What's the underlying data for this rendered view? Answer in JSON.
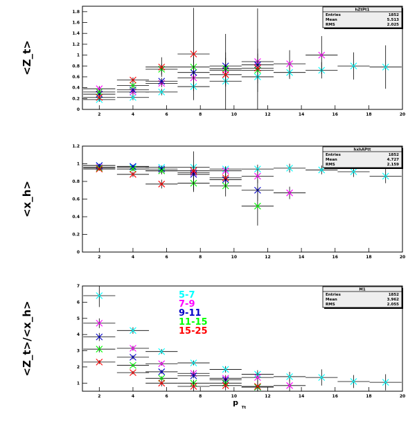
{
  "xaxis": {
    "label_main": "p",
    "label_sub": "Tt",
    "ticks": [
      2,
      4,
      6,
      8,
      10,
      12,
      14,
      16,
      18,
      20
    ],
    "range": [
      1,
      20
    ]
  },
  "legend": [
    {
      "label": "5-7",
      "color": "#00ffff"
    },
    {
      "label": "7-9",
      "color": "#ff00ff"
    },
    {
      "label": "9-11",
      "color": "#0000c8"
    },
    {
      "label": "11-15",
      "color": "#00ff00"
    },
    {
      "label": "15-25",
      "color": "#ff0000"
    }
  ],
  "series_colors": [
    "#00ffff",
    "#ff00ff",
    "#0000c8",
    "#00ff00",
    "#ff0000"
  ],
  "chart_data": [
    {
      "type": "scatter",
      "ylabel": "<Z_t>",
      "ylim": [
        0,
        1.9
      ],
      "yticks": [
        "0",
        "0.2",
        "0.4",
        "0.6",
        "0.8",
        "1",
        "1.2",
        "1.4",
        "1.6",
        "1.8"
      ],
      "stats": {
        "title": "hZtPt1",
        "rows": [
          [
            "Entries",
            "1852"
          ],
          [
            "Mean",
            "5.513"
          ],
          [
            "RMS",
            "2.025"
          ]
        ]
      },
      "series": [
        {
          "points": [
            [
              2,
              0.18,
              0.04
            ],
            [
              4,
              0.22,
              0.05
            ],
            [
              5.7,
              0.32,
              0.06
            ],
            [
              7.6,
              0.42,
              0.08
            ],
            [
              9.5,
              0.52,
              0.1
            ],
            [
              11.4,
              0.6,
              0.12
            ],
            [
              13.3,
              0.68,
              0.12
            ],
            [
              15.2,
              0.72,
              0.15
            ],
            [
              17.1,
              0.8,
              0.25
            ],
            [
              19,
              0.78,
              0.4
            ]
          ]
        },
        {
          "points": [
            [
              2,
              0.38,
              0.05
            ],
            [
              4,
              0.32,
              0.05
            ],
            [
              5.7,
              0.48,
              0.07
            ],
            [
              7.6,
              0.58,
              0.1
            ],
            [
              9.5,
              0.72,
              0.1
            ],
            [
              11.4,
              0.88,
              0.15
            ],
            [
              13.3,
              0.84,
              0.25
            ],
            [
              15.2,
              1.0,
              0.35
            ]
          ]
        },
        {
          "points": [
            [
              2,
              0.28,
              0.05
            ],
            [
              4,
              0.36,
              0.05
            ],
            [
              5.7,
              0.52,
              0.06
            ],
            [
              7.6,
              0.68,
              0.1
            ],
            [
              9.5,
              0.8,
              0.15
            ],
            [
              11.4,
              0.82,
              0.2
            ]
          ]
        },
        {
          "points": [
            [
              2,
              0.32,
              0.05
            ],
            [
              4,
              0.44,
              0.05
            ],
            [
              5.7,
              0.74,
              0.1
            ],
            [
              7.6,
              0.78,
              0.2
            ],
            [
              9.5,
              0.75,
              0.3
            ],
            [
              11.4,
              0.72,
              0.4
            ]
          ]
        },
        {
          "points": [
            [
              2,
              0.22,
              0.05
            ],
            [
              4,
              0.54,
              0.05
            ],
            [
              5.7,
              0.78,
              0.18
            ],
            [
              7.6,
              1.02,
              0.85
            ],
            [
              9.5,
              0.64,
              0.75
            ],
            [
              11.4,
              0.76,
              1.1
            ]
          ]
        }
      ]
    },
    {
      "type": "scatter",
      "ylabel": "<x_h>",
      "ylim": [
        0,
        1.2
      ],
      "yticks": [
        "0",
        "0.2",
        "0.4",
        "0.6",
        "0.8",
        "1",
        "1.2"
      ],
      "stats": {
        "title": "hxhAPtt",
        "rows": [
          [
            "Entries",
            "1852"
          ],
          [
            "Mean",
            "4.727"
          ],
          [
            "RMS",
            "2.159"
          ]
        ]
      },
      "series": [
        {
          "points": [
            [
              2,
              0.98,
              0.02
            ],
            [
              4,
              0.96,
              0.02
            ],
            [
              5.7,
              0.96,
              0.02
            ],
            [
              7.6,
              0.96,
              0.03
            ],
            [
              9.5,
              0.94,
              0.03
            ],
            [
              11.4,
              0.94,
              0.05
            ],
            [
              13.3,
              0.95,
              0.05
            ],
            [
              15.2,
              0.93,
              0.05
            ],
            [
              17.1,
              0.91,
              0.06
            ],
            [
              19,
              0.86,
              0.08
            ]
          ]
        },
        {
          "points": [
            [
              2,
              0.96,
              0.02
            ],
            [
              4,
              0.94,
              0.02
            ],
            [
              5.7,
              0.92,
              0.03
            ],
            [
              7.6,
              0.9,
              0.04
            ],
            [
              9.5,
              0.92,
              0.05
            ],
            [
              11.4,
              0.86,
              0.08
            ],
            [
              13.3,
              0.67,
              0.07
            ]
          ]
        },
        {
          "points": [
            [
              2,
              0.98,
              0.02
            ],
            [
              4,
              0.97,
              0.02
            ],
            [
              5.7,
              0.94,
              0.03
            ],
            [
              7.6,
              0.88,
              0.05
            ],
            [
              9.5,
              0.82,
              0.08
            ],
            [
              11.4,
              0.7,
              0.12
            ]
          ]
        },
        {
          "points": [
            [
              2,
              0.95,
              0.02
            ],
            [
              4,
              0.94,
              0.02
            ],
            [
              5.7,
              0.92,
              0.04
            ],
            [
              7.6,
              0.78,
              0.1
            ],
            [
              9.5,
              0.75,
              0.12
            ],
            [
              11.4,
              0.52,
              0.22
            ]
          ]
        },
        {
          "points": [
            [
              2,
              0.94,
              0.02
            ],
            [
              4,
              0.88,
              0.03
            ],
            [
              5.7,
              0.77,
              0.05
            ],
            [
              7.6,
              0.92,
              0.22
            ],
            [
              9.5,
              0.84,
              0.12
            ]
          ]
        }
      ]
    },
    {
      "type": "scatter",
      "ylabel": "<Z_t>/<x_h>",
      "ylim": [
        0.5,
        7
      ],
      "yticks": [
        "1",
        "2",
        "3",
        "4",
        "5",
        "6",
        "7"
      ],
      "stats": {
        "title": "M1",
        "rows": [
          [
            "Entries",
            "1852"
          ],
          [
            "Mean",
            "3.962"
          ],
          [
            "RMS",
            "2.055"
          ]
        ]
      },
      "series": [
        {
          "points": [
            [
              2,
              6.4,
              0.7
            ],
            [
              4,
              4.25,
              0.2
            ],
            [
              5.7,
              2.95,
              0.15
            ],
            [
              7.6,
              2.25,
              0.15
            ],
            [
              9.5,
              1.85,
              0.2
            ],
            [
              11.4,
              1.55,
              0.25
            ],
            [
              13.3,
              1.4,
              0.3
            ],
            [
              15.2,
              1.35,
              0.5
            ],
            [
              17.1,
              1.1,
              0.4
            ],
            [
              19,
              1.05,
              0.5
            ]
          ]
        },
        {
          "points": [
            [
              2,
              4.7,
              0.3
            ],
            [
              4,
              3.15,
              0.15
            ],
            [
              5.7,
              2.2,
              0.12
            ],
            [
              7.6,
              1.6,
              0.2
            ],
            [
              9.5,
              1.3,
              0.2
            ],
            [
              11.4,
              1.35,
              0.3
            ],
            [
              13.3,
              0.85,
              0.4
            ]
          ]
        },
        {
          "points": [
            [
              2,
              3.85,
              0.25
            ],
            [
              4,
              2.6,
              0.12
            ],
            [
              5.7,
              1.7,
              0.12
            ],
            [
              7.6,
              1.45,
              0.15
            ],
            [
              9.5,
              1.2,
              0.2
            ],
            [
              11.4,
              0.75,
              0.25
            ]
          ]
        },
        {
          "points": [
            [
              2,
              3.1,
              0.2
            ],
            [
              4,
              2.1,
              0.1
            ],
            [
              5.7,
              1.3,
              0.12
            ],
            [
              7.6,
              1.0,
              0.2
            ],
            [
              9.5,
              1.0,
              0.3
            ],
            [
              11.4,
              0.75,
              0.4
            ]
          ]
        },
        {
          "points": [
            [
              2,
              2.3,
              0.12
            ],
            [
              4,
              1.65,
              0.1
            ],
            [
              5.7,
              1.0,
              0.2
            ],
            [
              7.6,
              0.8,
              0.3
            ],
            [
              9.5,
              0.85,
              0.3
            ],
            [
              11.4,
              0.8,
              0.4
            ]
          ]
        }
      ]
    }
  ]
}
